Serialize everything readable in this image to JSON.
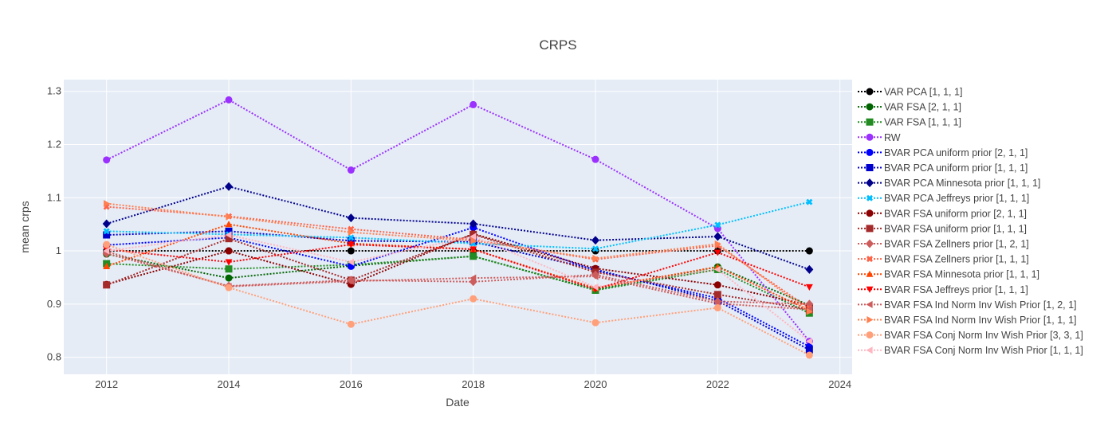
{
  "chart_data": {
    "type": "line",
    "title": "CRPS",
    "xlabel": "Date",
    "ylabel": "mean crps",
    "xlim": [
      2011.3,
      2024.2
    ],
    "ylim": [
      0.768,
      1.322
    ],
    "xticks": [
      2012,
      2014,
      2016,
      2018,
      2020,
      2022,
      2024
    ],
    "xtick_labels": [
      "2012",
      "2014",
      "2016",
      "2018",
      "2020",
      "2022",
      "2024"
    ],
    "yticks": [
      0.8,
      0.9,
      1.0,
      1.1,
      1.2,
      1.3
    ],
    "ytick_labels": [
      "0.8",
      "0.9",
      "1",
      "1.1",
      "1.2",
      "1.3"
    ],
    "grid": true,
    "legend_position": "right",
    "x": [
      2012,
      2014,
      2016,
      2018,
      2020,
      2022,
      2023.5
    ],
    "series": [
      {
        "name": "VAR PCA [1, 1, 1]",
        "color": "#000000",
        "marker": "circle",
        "values": [
          1.0,
          1.0,
          1.0,
          1.0,
          1.0,
          1.0,
          1.0
        ]
      },
      {
        "name": "VAR FSA [2, 1, 1]",
        "color": "#006400",
        "marker": "circle",
        "values": [
          0.994,
          0.949,
          0.972,
          0.99,
          0.927,
          0.97,
          0.898
        ]
      },
      {
        "name": "VAR FSA [1, 1, 1]",
        "color": "#228B22",
        "marker": "square",
        "values": [
          0.976,
          0.966,
          0.974,
          0.99,
          0.926,
          0.965,
          0.883
        ]
      },
      {
        "name": "RW",
        "color": "#9B30FF",
        "marker": "circle",
        "values": [
          1.171,
          1.284,
          1.152,
          1.275,
          1.172,
          1.042,
          0.83
        ]
      },
      {
        "name": "BVAR PCA uniform prior [2, 1, 1]",
        "color": "#0000FF",
        "marker": "circle",
        "values": [
          1.011,
          1.025,
          0.971,
          1.044,
          0.963,
          0.911,
          0.82
        ]
      },
      {
        "name": "BVAR PCA uniform prior [1, 1, 1]",
        "color": "#0000CD",
        "marker": "square",
        "values": [
          1.03,
          1.037,
          1.019,
          1.017,
          0.965,
          0.906,
          0.814
        ]
      },
      {
        "name": "BVAR PCA Minnesota prior [1, 1, 1]",
        "color": "#00008B",
        "marker": "diamond",
        "values": [
          1.051,
          1.121,
          1.062,
          1.051,
          1.02,
          1.027,
          0.965
        ]
      },
      {
        "name": "BVAR PCA Jeffreys prior [1, 1, 1]",
        "color": "#00BFFF",
        "marker": "x",
        "values": [
          1.037,
          1.031,
          1.025,
          1.014,
          1.004,
          1.049,
          1.092
        ]
      },
      {
        "name": "BVAR FSA uniform prior [2, 1, 1]",
        "color": "#8B0000",
        "marker": "circle",
        "values": [
          0.937,
          1.0,
          0.937,
          1.032,
          0.967,
          0.936,
          0.898
        ]
      },
      {
        "name": "BVAR FSA uniform prior [1, 1, 1]",
        "color": "#A52A2A",
        "marker": "square",
        "values": [
          0.936,
          1.023,
          0.945,
          1.031,
          0.96,
          0.918,
          0.89
        ]
      },
      {
        "name": "BVAR FSA Zellners prior [1, 2, 1]",
        "color": "#CD5C5C",
        "marker": "diamond",
        "values": [
          0.995,
          0.934,
          0.945,
          0.942,
          0.955,
          0.905,
          0.9
        ]
      },
      {
        "name": "BVAR FSA Zellners prior [1, 1, 1]",
        "color": "#FF6347",
        "marker": "x",
        "values": [
          1.083,
          1.065,
          1.041,
          1.021,
          0.984,
          1.01,
          0.892
        ]
      },
      {
        "name": "BVAR FSA Minnesota prior [1, 1, 1]",
        "color": "#FF4500",
        "marker": "triangle-up",
        "values": [
          0.971,
          1.05,
          1.014,
          1.003,
          0.93,
          0.97,
          0.888
        ]
      },
      {
        "name": "BVAR FSA Jeffreys prior [1, 1, 1]",
        "color": "#FF0000",
        "marker": "triangle-down",
        "values": [
          1.003,
          0.979,
          1.012,
          1.003,
          0.928,
          0.997,
          0.932
        ]
      },
      {
        "name": "BVAR FSA Ind Norm Inv Wish Prior [1, 2, 1]",
        "color": "#CD5C5C",
        "marker": "triangle-left",
        "values": [
          0.999,
          0.933,
          0.943,
          0.949,
          0.952,
          0.901,
          0.89
        ]
      },
      {
        "name": "BVAR FSA Ind Norm Inv Wish Prior [1, 1, 1]",
        "color": "#FF7F50",
        "marker": "triangle-right",
        "values": [
          1.089,
          1.064,
          1.035,
          1.019,
          0.986,
          1.013,
          0.886
        ]
      },
      {
        "name": "BVAR FSA Conj Norm Inv Wish Prior [3, 3, 1]",
        "color": "#FFA07A",
        "marker": "circle",
        "values": [
          1.012,
          0.931,
          0.862,
          0.91,
          0.865,
          0.893,
          0.804
        ]
      },
      {
        "name": "BVAR FSA Conj Norm Inv Wish Prior [1, 1, 1]",
        "color": "#FFB6C1",
        "marker": "triangle-left",
        "values": [
          1.0,
          1.03,
          0.979,
          1.027,
          0.932,
          0.965,
          0.83
        ]
      }
    ]
  }
}
